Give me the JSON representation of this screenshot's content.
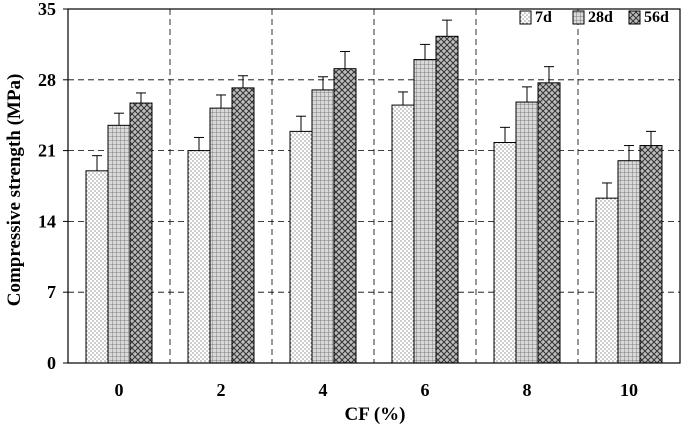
{
  "chart_data": {
    "type": "bar",
    "xlabel": "CF (%)",
    "ylabel": "Compressive strength (MPa)",
    "categories": [
      "0",
      "2",
      "4",
      "6",
      "8",
      "10"
    ],
    "ylim": [
      0,
      35
    ],
    "yticks": [
      0,
      7,
      14,
      21,
      28,
      35
    ],
    "grid": true,
    "legend_position": "top-right",
    "series": [
      {
        "name": "7d",
        "pattern": "dots",
        "values": [
          19.0,
          21.0,
          22.9,
          25.5,
          21.8,
          16.3
        ],
        "errors": [
          1.5,
          1.3,
          1.5,
          1.3,
          1.5,
          1.5
        ]
      },
      {
        "name": "28d",
        "pattern": "grid",
        "values": [
          23.5,
          25.2,
          27.0,
          30.0,
          25.8,
          20.0
        ],
        "errors": [
          1.2,
          1.3,
          1.3,
          1.5,
          1.5,
          1.5
        ]
      },
      {
        "name": "56d",
        "pattern": "crosshatch",
        "values": [
          25.7,
          27.2,
          29.1,
          32.3,
          27.7,
          21.5
        ],
        "errors": [
          1.0,
          1.2,
          1.7,
          1.6,
          1.6,
          1.4
        ]
      }
    ]
  }
}
